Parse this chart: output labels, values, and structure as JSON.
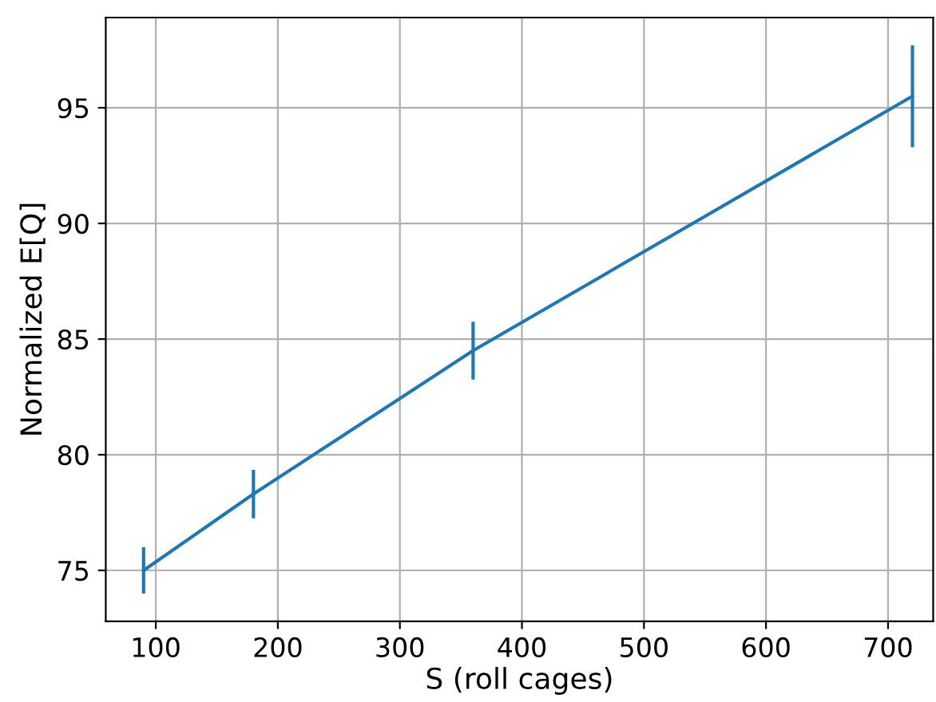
{
  "chart_data": {
    "type": "line",
    "xlabel": "S (roll cages)",
    "ylabel": "Normalized E[Q]",
    "x": [
      90,
      180,
      360,
      720
    ],
    "series": [
      {
        "color": "#1f77b4",
        "values": [
          75.0,
          78.3,
          84.5,
          95.5
        ],
        "errors": [
          1.0,
          1.05,
          1.25,
          2.2
        ]
      }
    ],
    "xlim": [
      59,
      737
    ],
    "ylim": [
      72.8,
      98.9
    ],
    "xticks": [
      100,
      200,
      300,
      400,
      500,
      600,
      700
    ],
    "yticks": [
      75,
      80,
      85,
      90,
      95
    ],
    "grid": true,
    "marker": "none",
    "line_style": "solid"
  }
}
